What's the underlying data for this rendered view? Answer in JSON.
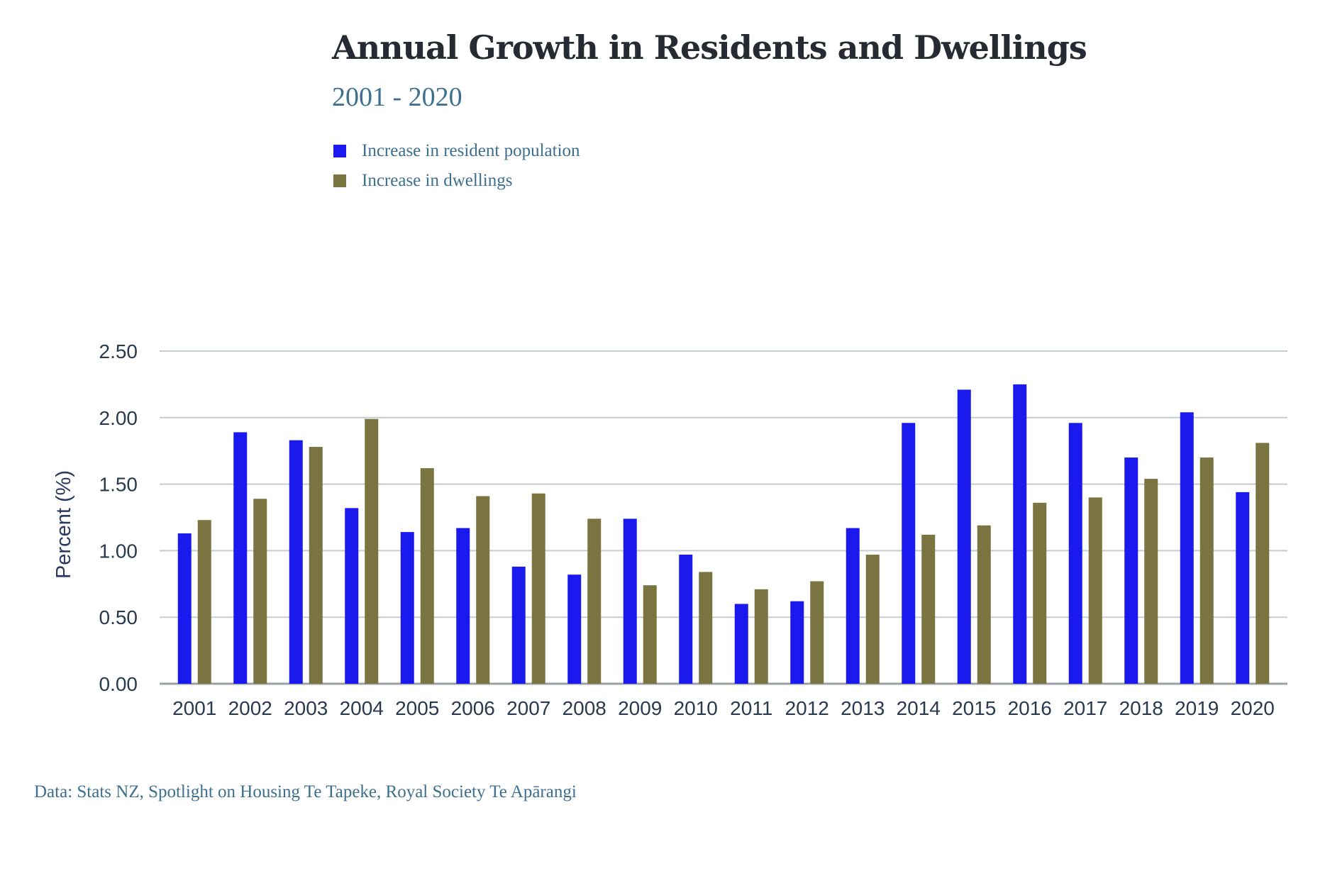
{
  "colors": {
    "population": "#1a1aee",
    "dwellings": "#7a7440",
    "grid": "#c7ccd1",
    "axis": "#9aa0a6"
  },
  "header": {
    "title": "Annual Growth in Residents and Dwellings",
    "subtitle": "2001 - 2020"
  },
  "footer": {
    "source": "Data: Stats NZ, Spotlight on Housing Te Tapeke, Royal Society Te Apārangi"
  },
  "chart_data": {
    "type": "bar",
    "title": "Annual Growth in Residents and Dwellings",
    "subtitle": "2001 - 2020",
    "ylabel": "Percent (%)",
    "xlabel": "",
    "ylim": [
      0,
      2.5
    ],
    "yticks": [
      "0.00",
      "0.50",
      "1.00",
      "1.50",
      "2.00",
      "2.50"
    ],
    "grid": true,
    "legend_position": "top-left",
    "categories": [
      "2001",
      "2002",
      "2003",
      "2004",
      "2005",
      "2006",
      "2007",
      "2008",
      "2009",
      "2010",
      "2011",
      "2012",
      "2013",
      "2014",
      "2015",
      "2016",
      "2017",
      "2018",
      "2019",
      "2020"
    ],
    "series": [
      {
        "name": "Increase in resident population",
        "color": "#1a1aee",
        "values": [
          1.13,
          1.89,
          1.83,
          1.32,
          1.14,
          1.17,
          0.88,
          0.82,
          1.24,
          0.97,
          0.6,
          0.62,
          1.17,
          1.96,
          2.21,
          2.25,
          1.96,
          1.7,
          2.04,
          1.44
        ]
      },
      {
        "name": "Increase in dwellings",
        "color": "#7a7440",
        "values": [
          1.23,
          1.39,
          1.78,
          1.99,
          1.62,
          1.41,
          1.43,
          1.24,
          0.74,
          0.84,
          0.71,
          0.77,
          0.97,
          1.12,
          1.19,
          1.36,
          1.4,
          1.54,
          1.7,
          1.81
        ]
      }
    ],
    "source": "Data: Stats NZ, Spotlight on Housing Te Tapeke, Royal Society Te Apārangi"
  }
}
